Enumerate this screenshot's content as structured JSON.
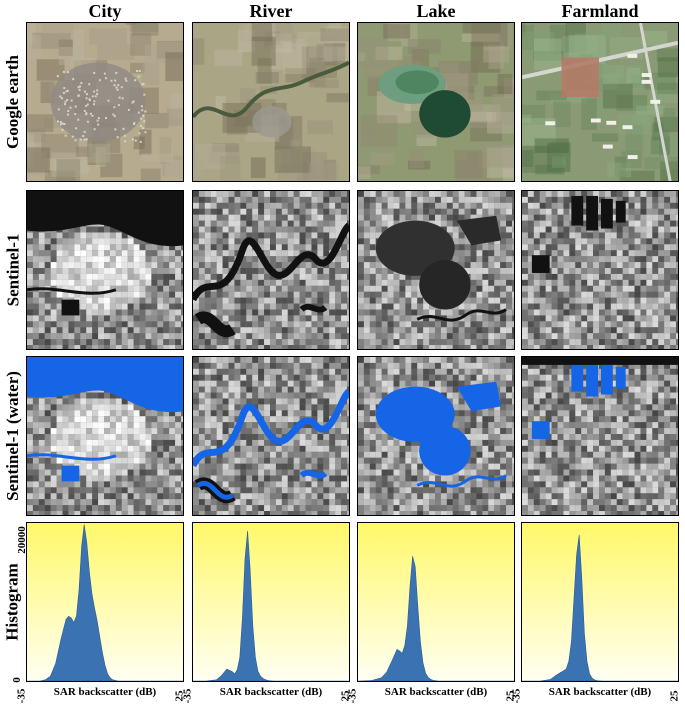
{
  "columns": [
    "City",
    "River",
    "Lake",
    "Farmland"
  ],
  "rows": [
    "Google earth",
    "Sentinel-1",
    "Sentinel-1 (water)",
    "Histogram"
  ],
  "colors": {
    "water": "#1565e6",
    "histogram_fill": "#3b73b2",
    "histogram_bg_top": "#fff86a",
    "histogram_bg_bottom": "#fffff2"
  },
  "chart_data": {
    "type": "area",
    "xlabel": "SAR backscatter (dB)",
    "xlim": [
      -35,
      25
    ],
    "x_ticks": [
      "-35",
      "25"
    ],
    "ylim": [
      0,
      20000
    ],
    "y_ticks": [
      "0",
      "20000"
    ],
    "panels": [
      {
        "column": "City",
        "x": [
          -35,
          -30,
          -28,
          -26,
          -24,
          -22,
          -20,
          -19,
          -18,
          -17,
          -16,
          -15,
          -14,
          -13,
          -12,
          -11,
          -10,
          -9,
          -8,
          -7,
          -6,
          -5,
          -4,
          -3,
          -2,
          0,
          25
        ],
        "y": [
          0,
          0,
          150,
          600,
          2200,
          5200,
          7800,
          8200,
          8000,
          7400,
          8200,
          11500,
          17000,
          19800,
          17500,
          13800,
          11000,
          9200,
          7600,
          5600,
          3600,
          2000,
          900,
          400,
          150,
          0,
          0
        ]
      },
      {
        "column": "River",
        "x": [
          -35,
          -30,
          -26,
          -24,
          -22,
          -20,
          -19,
          -18,
          -17,
          -16,
          -15,
          -14,
          -13,
          -12,
          -11,
          -10,
          -9,
          -8,
          -7,
          -6,
          -4,
          0,
          25
        ],
        "y": [
          0,
          0,
          150,
          700,
          1500,
          1200,
          900,
          1400,
          3000,
          8000,
          15500,
          19000,
          14000,
          7000,
          3000,
          1200,
          600,
          300,
          150,
          60,
          0,
          0,
          0
        ]
      },
      {
        "column": "Lake",
        "x": [
          -35,
          -30,
          -26,
          -24,
          -22,
          -20,
          -19,
          -18,
          -17,
          -16,
          -15,
          -14,
          -13,
          -12,
          -11,
          -10,
          -9,
          -8,
          -7,
          -6,
          -4,
          0,
          25
        ],
        "y": [
          0,
          50,
          400,
          1100,
          2500,
          4000,
          3800,
          3500,
          4500,
          7000,
          12000,
          15800,
          14500,
          9500,
          5000,
          2300,
          1000,
          450,
          200,
          80,
          0,
          0,
          0
        ]
      },
      {
        "column": "Farmland",
        "x": [
          -35,
          -28,
          -24,
          -22,
          -20,
          -19,
          -18,
          -17,
          -16,
          -15,
          -14,
          -13,
          -12,
          -11,
          -10,
          -9,
          -8,
          -7,
          -6,
          -4,
          0,
          25
        ],
        "y": [
          0,
          0,
          200,
          700,
          1100,
          1300,
          1500,
          2500,
          5000,
          10500,
          16000,
          18500,
          13000,
          6000,
          2500,
          900,
          350,
          120,
          40,
          0,
          0,
          0
        ]
      }
    ]
  }
}
